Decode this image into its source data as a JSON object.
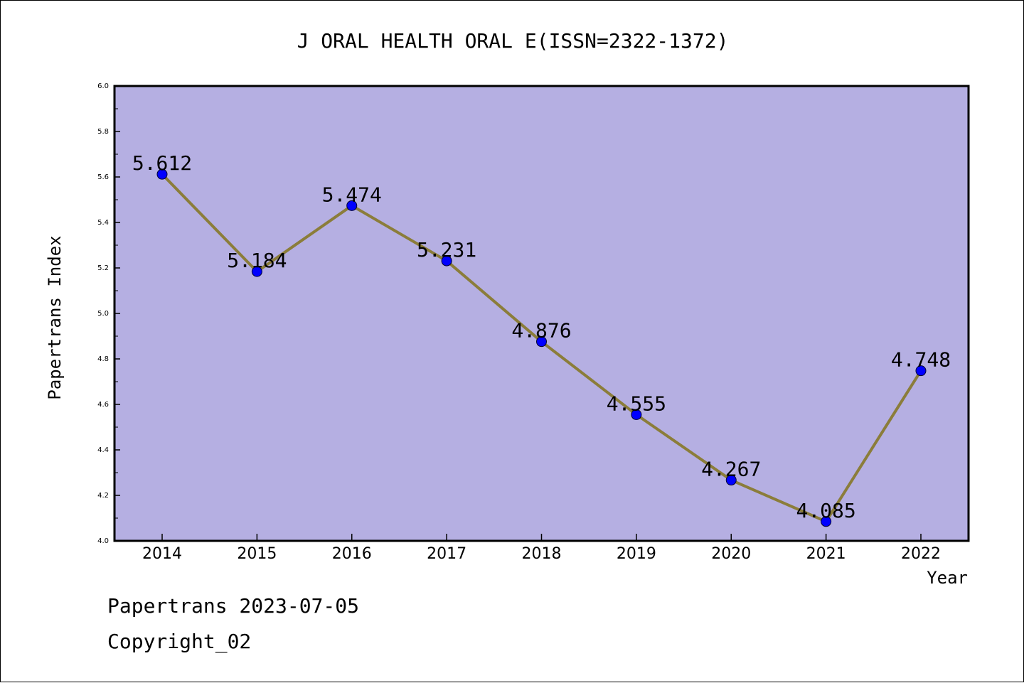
{
  "chart_data": {
    "type": "line",
    "title": "J ORAL HEALTH ORAL E(ISSN=2322-1372)",
    "xlabel": "Year",
    "ylabel": "Papertrans Index",
    "categories": [
      "2014",
      "2015",
      "2016",
      "2017",
      "2018",
      "2019",
      "2020",
      "2021",
      "2022"
    ],
    "values": [
      5.612,
      5.184,
      5.474,
      5.231,
      4.876,
      4.555,
      4.267,
      4.085,
      4.748
    ],
    "data_labels": [
      "5.612",
      "5.184",
      "5.474",
      "5.231",
      "4.876",
      "4.555",
      "4.267",
      "4.085",
      "4.748"
    ],
    "ylim": [
      4.0,
      6.0
    ],
    "yticks": [
      "4.0",
      "4.2",
      "4.4",
      "4.6",
      "4.8",
      "5.0",
      "5.2",
      "5.4",
      "5.6",
      "5.8",
      "6.0"
    ],
    "grid": false,
    "colors": {
      "plot_background": "#b5afe2",
      "line": "#8b7d3a",
      "marker": "#0000ff"
    }
  },
  "footer": {
    "line1": "Papertrans 2023-07-05",
    "line2": "Copyright_02"
  }
}
